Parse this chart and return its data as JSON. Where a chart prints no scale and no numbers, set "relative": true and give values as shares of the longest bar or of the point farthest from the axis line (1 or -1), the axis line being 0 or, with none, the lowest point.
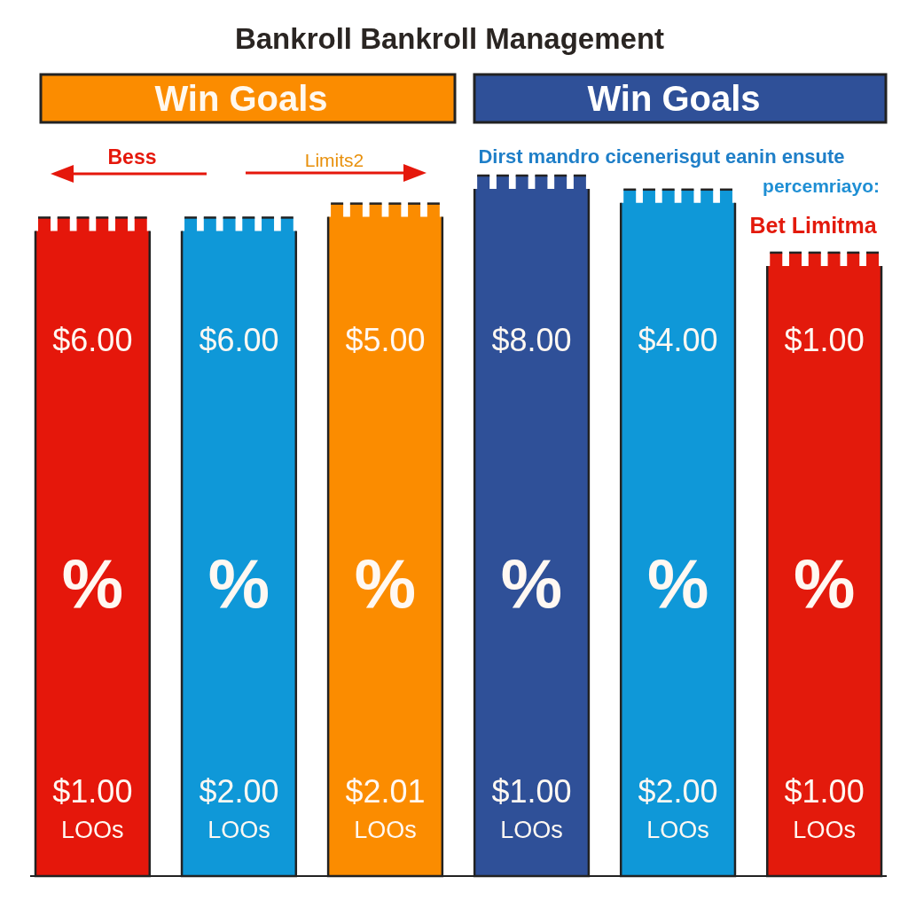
{
  "chart_data": {
    "type": "bar",
    "title": "Bankroll Bankroll Management",
    "categories": [
      null,
      null,
      null,
      null,
      null,
      null
    ],
    "values": [
      0.94,
      0.94,
      0.96,
      1,
      0.98,
      0.89
    ],
    "relative": true,
    "colors": [
      "#e5170b",
      "#0f98d8",
      "#fb8c00",
      "#2f5098",
      "#0f98d8",
      "#e31a0c"
    ],
    "annotations": [
      "Win Goals",
      "Win Goals",
      "Bess",
      "Limits2",
      "Dirst mandro cicenerisgut eanin ensute",
      "percemriayo:",
      "Bet Limitma",
      "$6.00",
      "%",
      "$1.00",
      "LOOs",
      "$6.00",
      "%",
      "$2.00",
      "LOOs",
      "$5.00",
      "%",
      "$2.01",
      "LOOs",
      "$8.00",
      "%",
      "$1.00",
      "LOOs",
      "$4.00",
      "%",
      "$2.00",
      "LOOs",
      "$1.00",
      "%",
      "$1.00",
      "LOOs"
    ]
  }
}
